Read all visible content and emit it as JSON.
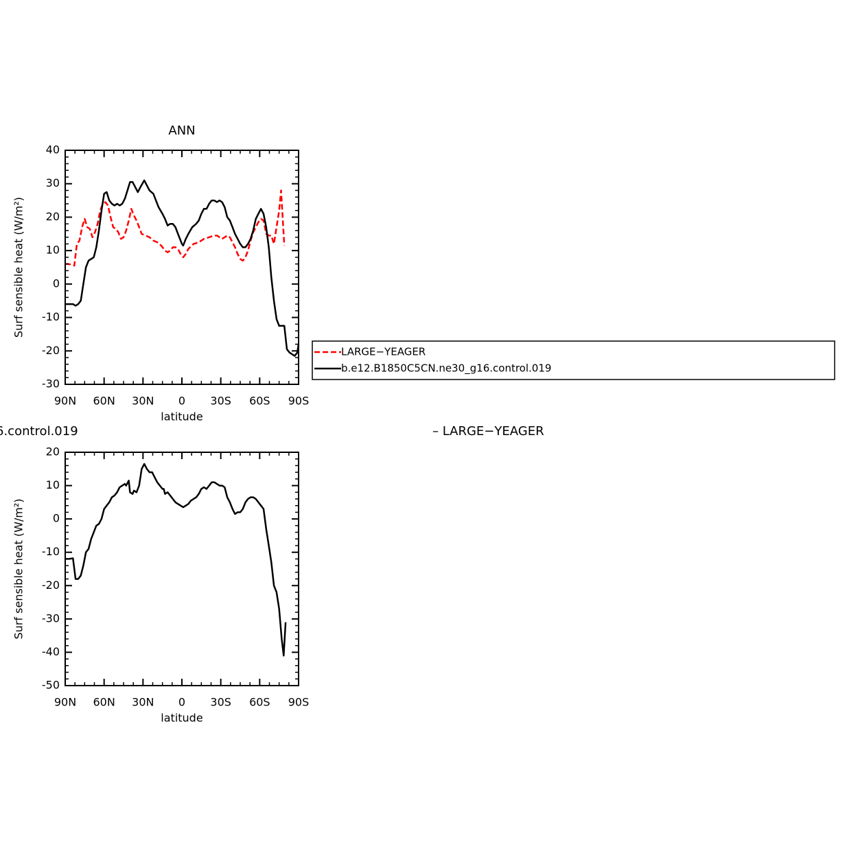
{
  "chart_data": [
    {
      "type": "line",
      "title": "ANN",
      "ylabel": "Surf sensible heat (W/m²)",
      "xlabel": "latitude",
      "xlim": [
        90,
        -90
      ],
      "xticks": [
        {
          "value": 90,
          "label": "90N"
        },
        {
          "value": 60,
          "label": "60N"
        },
        {
          "value": 30,
          "label": "30N"
        },
        0,
        {
          "value": -30,
          "label": "30S"
        },
        {
          "value": -60,
          "label": "60S"
        },
        {
          "value": -90,
          "label": "90S"
        }
      ],
      "ylim": [
        -30,
        40
      ],
      "yticks": [
        -30,
        -20,
        -10,
        0,
        10,
        20,
        30,
        40
      ],
      "legend": "right",
      "series": [
        {
          "name": "LARGE−YEAGER",
          "color": "#ff0000",
          "dashed": true,
          "x": [
            90,
            88,
            85,
            83,
            81,
            79,
            77,
            75,
            73,
            71,
            69,
            67,
            65,
            63,
            61,
            59,
            57,
            55,
            53,
            51,
            49,
            47,
            45,
            43,
            41,
            39,
            37,
            35,
            33,
            31,
            28,
            25,
            22,
            19,
            16,
            13,
            11,
            9,
            7,
            5,
            3,
            1,
            -1,
            -3,
            -5,
            -9,
            -13,
            -17,
            -21,
            -25,
            -27,
            -29,
            -31,
            -33,
            -35,
            -37,
            -39,
            -41,
            -43,
            -45,
            -47,
            -49,
            -51,
            -53,
            -55,
            -57,
            -59,
            -61,
            -63,
            -65,
            -67,
            -69,
            -71,
            -73,
            -75,
            -76.5,
            -79
          ],
          "values": [
            6,
            6,
            5.8,
            5.5,
            12,
            13,
            17,
            19.5,
            17,
            16.5,
            14,
            15.5,
            18,
            22,
            24,
            24.5,
            23.5,
            20,
            17,
            16.5,
            15.5,
            13.5,
            14,
            16,
            19,
            22.5,
            20.5,
            19,
            17,
            15,
            14.5,
            14,
            13,
            12.5,
            11.5,
            10,
            9.5,
            10,
            11,
            11,
            10.5,
            9,
            8,
            9,
            10.5,
            12,
            12.5,
            13.5,
            14,
            14.5,
            14.5,
            14,
            13.5,
            14,
            14.5,
            14,
            12.5,
            11,
            9,
            7.5,
            7,
            8,
            10,
            13,
            15.5,
            17,
            18.5,
            19.5,
            19,
            15,
            14.5,
            14.5,
            12,
            17,
            22,
            28,
            11.5
          ]
        },
        {
          "name": "b.e12.B1850C5CN.ne30_g16.control.019",
          "color": "#000000",
          "dashed": false,
          "x": [
            90,
            87,
            84,
            82,
            80,
            78,
            76,
            74,
            72,
            70,
            68,
            66,
            64,
            62,
            60,
            58,
            56,
            54,
            52,
            50,
            48,
            46,
            44,
            42,
            40,
            38,
            36,
            34,
            32,
            29,
            27,
            25,
            22,
            20,
            18,
            15,
            13,
            11,
            9,
            7,
            5,
            3,
            1,
            0,
            -1,
            -3,
            -5,
            -8,
            -11,
            -13,
            -15,
            -17,
            -19,
            -21,
            -23,
            -25,
            -27,
            -29,
            -31,
            -33,
            -35,
            -37,
            -39,
            -41,
            -43,
            -45,
            -47,
            -49,
            -51,
            -53,
            -55,
            -57,
            -59,
            -61,
            -63,
            -65,
            -67,
            -69,
            -71,
            -73,
            -75,
            -77,
            -79,
            -81,
            -83,
            -85,
            -87,
            -89,
            -90
          ],
          "values": [
            -6,
            -6,
            -6,
            -6.5,
            -6,
            -5,
            0,
            5,
            7,
            7.5,
            8,
            11,
            16,
            22,
            27,
            27.5,
            25,
            24,
            23.5,
            24,
            23.5,
            24,
            25.5,
            28,
            30.5,
            30.5,
            29,
            27.5,
            29,
            31,
            29.5,
            28,
            27,
            25,
            23,
            21,
            19.5,
            17.5,
            18,
            18,
            17,
            15,
            13,
            12,
            11.5,
            13.5,
            15,
            17,
            18,
            19,
            21,
            22.5,
            22.5,
            24,
            25,
            25,
            24.5,
            25,
            24.5,
            23,
            20,
            19,
            17,
            15,
            13.5,
            12,
            11,
            11,
            12,
            13.5,
            16,
            19.5,
            21,
            22.5,
            21,
            17,
            11,
            2,
            -5,
            -10.5,
            -12.5,
            -12.5,
            -12.5,
            -19.5,
            -20.5,
            -21,
            -21.5,
            -20.5,
            -18
          ]
        }
      ]
    },
    {
      "type": "line",
      "title_left": "6.control.019",
      "title_right": "– LARGE−YEAGER",
      "ylabel": "Surf sensible heat (W/m²)",
      "xlabel": "latitude",
      "xlim": [
        90,
        -90
      ],
      "xticks": [
        {
          "value": 90,
          "label": "90N"
        },
        {
          "value": 60,
          "label": "60N"
        },
        {
          "value": 30,
          "label": "30N"
        },
        0,
        {
          "value": -30,
          "label": "30S"
        },
        {
          "value": -60,
          "label": "60S"
        },
        {
          "value": -90,
          "label": "90S"
        }
      ],
      "ylim": [
        -50,
        20
      ],
      "yticks": [
        -50,
        -40,
        -30,
        -20,
        -10,
        0,
        10,
        20
      ],
      "series": [
        {
          "color": "#000000",
          "dashed": false,
          "x": [
            90,
            87,
            84,
            82,
            80,
            78,
            76,
            74,
            72,
            70,
            68,
            66,
            64,
            62,
            60,
            58,
            56,
            54,
            52,
            50,
            48,
            46,
            44,
            43,
            41,
            40,
            38,
            37,
            35,
            33,
            31,
            29,
            27,
            25,
            23,
            21,
            19,
            17,
            15,
            14,
            13,
            11,
            9,
            7,
            5,
            3,
            1,
            -1,
            -3,
            -5,
            -7,
            -9,
            -11,
            -13,
            -15,
            -17,
            -19,
            -21,
            -23,
            -25,
            -27,
            -29,
            -31,
            -33,
            -35,
            -37,
            -39,
            -41,
            -43,
            -45,
            -47,
            -49,
            -51,
            -53,
            -55,
            -57,
            -59,
            -61,
            -63,
            -65,
            -67,
            -69,
            -71,
            -73,
            -75,
            -77,
            -78.5,
            -80
          ],
          "values": [
            -12,
            -12,
            -11.8,
            -18,
            -18,
            -17,
            -14,
            -10,
            -9,
            -6,
            -4,
            -2,
            -1.5,
            0,
            3,
            4,
            5,
            6.5,
            7,
            8,
            9.5,
            10,
            10.5,
            10,
            11.5,
            8,
            7.5,
            8.5,
            8,
            10,
            15,
            16.5,
            15,
            14,
            14,
            12.5,
            11,
            10,
            9,
            9,
            7.5,
            8,
            7,
            6,
            5,
            4.5,
            4,
            3.5,
            4,
            4.5,
            5.5,
            6,
            6.5,
            7.5,
            9,
            9.5,
            9,
            10,
            11,
            11,
            10.5,
            10,
            10,
            9.5,
            6.5,
            5,
            3,
            1.5,
            2,
            2,
            3,
            5,
            6,
            6.5,
            6.5,
            6,
            5,
            4,
            3,
            -3,
            -8,
            -13,
            -20,
            -22,
            -27,
            -36,
            -41,
            -31
          ]
        }
      ]
    }
  ]
}
